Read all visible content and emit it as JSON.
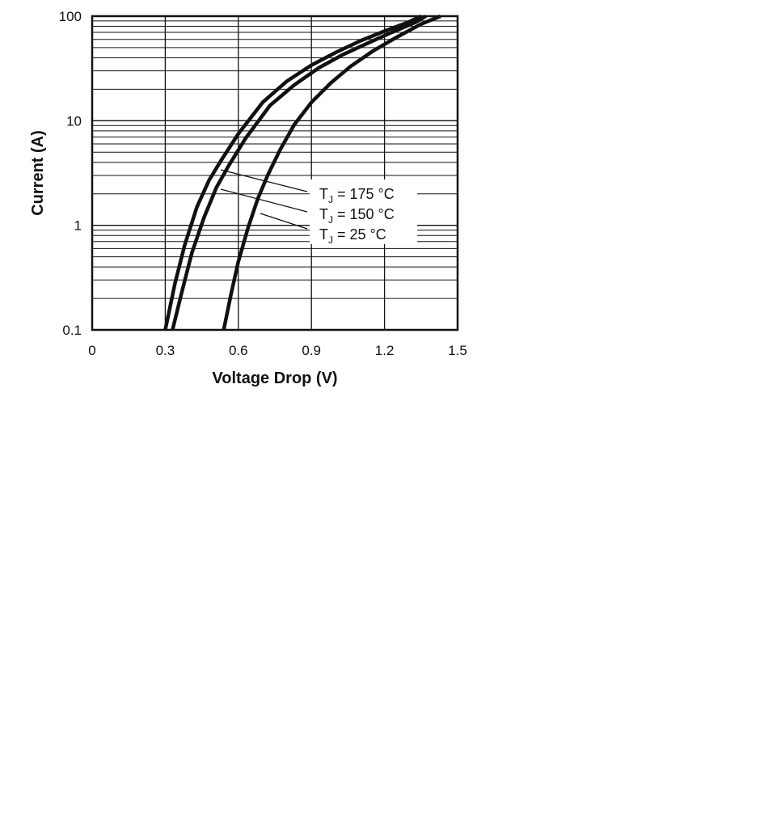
{
  "chart_data": {
    "type": "line",
    "title": "",
    "xlabel": "Voltage Drop (V)",
    "ylabel": "Current (A)",
    "xlim": [
      0,
      1.5
    ],
    "ylim": [
      0.1,
      100
    ],
    "yscale": "log",
    "grid": true,
    "x_ticks": [
      "0",
      "0.3",
      "0.6",
      "0.9",
      "1.2",
      "1.5"
    ],
    "y_ticks": [
      "0.1",
      "1",
      "10",
      "100"
    ],
    "legend_placement": "center-right",
    "series": [
      {
        "name": "175 °C",
        "label": {
          "symbol": "T",
          "subscript": "J",
          "text": "= 175 °C"
        },
        "x": [
          0.3,
          0.34,
          0.38,
          0.43,
          0.48,
          0.53,
          0.6,
          0.7,
          0.8,
          0.9,
          1.0,
          1.1,
          1.2,
          1.3,
          1.35
        ],
        "y": [
          0.1,
          0.28,
          0.65,
          1.5,
          2.7,
          4.2,
          7.5,
          15,
          24,
          34,
          45,
          58,
          72,
          88,
          100
        ]
      },
      {
        "name": "150 °C",
        "label": {
          "symbol": "T",
          "subscript": "J",
          "text": "= 150 °C"
        },
        "x": [
          0.33,
          0.37,
          0.41,
          0.46,
          0.51,
          0.56,
          0.63,
          0.73,
          0.83,
          0.93,
          1.03,
          1.13,
          1.23,
          1.33,
          1.37
        ],
        "y": [
          0.1,
          0.24,
          0.55,
          1.2,
          2.3,
          3.7,
          6.8,
          14,
          22,
          32,
          43,
          55,
          70,
          88,
          100
        ]
      },
      {
        "name": "25 °C",
        "label": {
          "symbol": "T",
          "subscript": "J",
          "text": "= 25 °C"
        },
        "x": [
          0.54,
          0.57,
          0.6,
          0.64,
          0.68,
          0.72,
          0.77,
          0.83,
          0.9,
          0.98,
          1.06,
          1.15,
          1.25,
          1.35,
          1.43
        ],
        "y": [
          0.1,
          0.22,
          0.45,
          0.95,
          1.8,
          3.0,
          5.2,
          9.2,
          15,
          23,
          33,
          46,
          63,
          84,
          100
        ]
      }
    ]
  }
}
